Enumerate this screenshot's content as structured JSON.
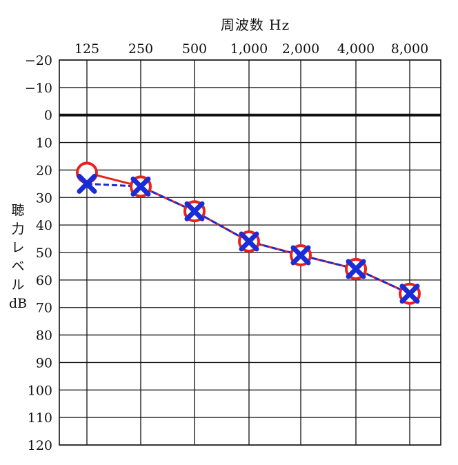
{
  "chart_data": {
    "type": "line",
    "xlabel": "周波数 Hz",
    "ylabel_chars": [
      "聴",
      "力",
      "レ",
      "ベ",
      "ル",
      "dB"
    ],
    "categories": [
      "125",
      "250",
      "500",
      "1,000",
      "2,000",
      "4,000",
      "8,000"
    ],
    "y_ticks": [
      "−20",
      "−10",
      "0",
      "10",
      "20",
      "30",
      "40",
      "50",
      "60",
      "70",
      "80",
      "90",
      "100",
      "110",
      "120"
    ],
    "ylim": [
      -20,
      120
    ],
    "y_inverted": true,
    "grid": true,
    "series": [
      {
        "marker": "circle",
        "line": "solid",
        "color": "#e8231c",
        "values": [
          21,
          26,
          35,
          46,
          51,
          56,
          65
        ]
      },
      {
        "marker": "cross",
        "line": "dashed",
        "color": "#1a2bd8",
        "values": [
          25,
          26,
          35,
          46,
          51,
          56,
          65
        ]
      }
    ]
  }
}
